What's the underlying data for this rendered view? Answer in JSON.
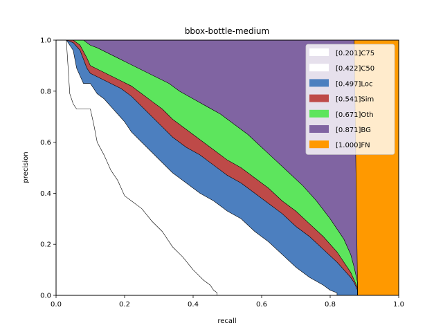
{
  "chart_data": {
    "type": "area",
    "title": "bbox-bottle-medium",
    "xlabel": "recall",
    "ylabel": "precision",
    "xlim": [
      0.0,
      1.0
    ],
    "ylim": [
      0.0,
      1.0
    ],
    "xticks": [
      "0.0",
      "0.2",
      "0.4",
      "0.6",
      "0.8",
      "1.0"
    ],
    "yticks": [
      "0.0",
      "0.2",
      "0.4",
      "0.6",
      "0.8",
      "1.0"
    ],
    "grid": false,
    "legend_position": "top-right",
    "series": [
      {
        "name": "[0.201]C75",
        "color": "#ffffff",
        "x": [
          0.0,
          0.03,
          0.04,
          0.05,
          0.06,
          0.08,
          0.1,
          0.11,
          0.12,
          0.14,
          0.16,
          0.18,
          0.2,
          0.22,
          0.25,
          0.28,
          0.31,
          0.34,
          0.37,
          0.4,
          0.43,
          0.45,
          0.46,
          0.47,
          0.47,
          1.0
        ],
        "y": [
          1.0,
          1.0,
          0.79,
          0.75,
          0.73,
          0.73,
          0.73,
          0.67,
          0.6,
          0.55,
          0.49,
          0.45,
          0.39,
          0.37,
          0.34,
          0.29,
          0.25,
          0.19,
          0.15,
          0.1,
          0.06,
          0.04,
          0.02,
          0.01,
          0.0,
          0.0
        ]
      },
      {
        "name": "[0.422]C50",
        "color": "#ffffff",
        "x": [
          0.0,
          0.03,
          0.05,
          0.06,
          0.08,
          0.09,
          0.1,
          0.12,
          0.14,
          0.16,
          0.18,
          0.2,
          0.22,
          0.25,
          0.28,
          0.31,
          0.34,
          0.38,
          0.42,
          0.46,
          0.5,
          0.54,
          0.58,
          0.62,
          0.66,
          0.7,
          0.74,
          0.78,
          0.8,
          0.82,
          0.82,
          1.0
        ],
        "y": [
          1.0,
          1.0,
          0.96,
          0.89,
          0.83,
          0.83,
          0.83,
          0.79,
          0.77,
          0.74,
          0.71,
          0.68,
          0.64,
          0.6,
          0.56,
          0.52,
          0.48,
          0.44,
          0.4,
          0.37,
          0.33,
          0.3,
          0.25,
          0.21,
          0.16,
          0.11,
          0.07,
          0.04,
          0.02,
          0.01,
          0.0,
          0.0
        ]
      },
      {
        "name": "[0.497]Loc",
        "color": "#4c7fbf",
        "x": [
          0.0,
          0.03,
          0.05,
          0.07,
          0.09,
          0.1,
          0.13,
          0.16,
          0.19,
          0.22,
          0.25,
          0.28,
          0.31,
          0.34,
          0.38,
          0.42,
          0.46,
          0.5,
          0.54,
          0.58,
          0.62,
          0.66,
          0.7,
          0.74,
          0.78,
          0.82,
          0.84,
          0.86,
          0.87,
          0.88,
          0.88,
          1.0
        ],
        "y": [
          1.0,
          1.0,
          0.99,
          0.96,
          0.89,
          0.87,
          0.85,
          0.83,
          0.81,
          0.78,
          0.74,
          0.7,
          0.66,
          0.62,
          0.58,
          0.55,
          0.51,
          0.47,
          0.44,
          0.4,
          0.36,
          0.32,
          0.27,
          0.23,
          0.18,
          0.13,
          0.1,
          0.07,
          0.05,
          0.02,
          0.0,
          0.0
        ]
      },
      {
        "name": "[0.541]Sim",
        "color": "#be4a48",
        "x": [
          0.0,
          0.03,
          0.05,
          0.07,
          0.09,
          0.1,
          0.13,
          0.16,
          0.19,
          0.22,
          0.25,
          0.28,
          0.31,
          0.34,
          0.38,
          0.42,
          0.46,
          0.5,
          0.54,
          0.58,
          0.62,
          0.66,
          0.7,
          0.74,
          0.78,
          0.82,
          0.84,
          0.86,
          0.87,
          0.88,
          0.88,
          1.0
        ],
        "y": [
          1.0,
          1.0,
          1.0,
          0.98,
          0.93,
          0.9,
          0.88,
          0.86,
          0.84,
          0.82,
          0.79,
          0.76,
          0.73,
          0.69,
          0.65,
          0.61,
          0.57,
          0.53,
          0.5,
          0.46,
          0.42,
          0.37,
          0.33,
          0.28,
          0.23,
          0.17,
          0.13,
          0.09,
          0.06,
          0.03,
          0.0,
          0.0
        ]
      },
      {
        "name": "[0.671]Oth",
        "color": "#5de55d",
        "x": [
          0.0,
          0.03,
          0.06,
          0.08,
          0.1,
          0.12,
          0.15,
          0.18,
          0.21,
          0.24,
          0.27,
          0.3,
          0.33,
          0.36,
          0.4,
          0.44,
          0.48,
          0.52,
          0.56,
          0.6,
          0.64,
          0.68,
          0.72,
          0.76,
          0.8,
          0.84,
          0.86,
          0.87,
          0.88,
          0.88,
          1.0
        ],
        "y": [
          1.0,
          1.0,
          1.0,
          1.0,
          0.98,
          0.97,
          0.95,
          0.93,
          0.91,
          0.89,
          0.87,
          0.85,
          0.83,
          0.8,
          0.77,
          0.74,
          0.71,
          0.67,
          0.63,
          0.58,
          0.53,
          0.48,
          0.43,
          0.37,
          0.3,
          0.22,
          0.16,
          0.11,
          0.05,
          0.0,
          0.0
        ]
      },
      {
        "name": "[0.871]BG",
        "color": "#8064a2",
        "x": [
          0.0,
          0.87,
          0.88,
          0.88,
          1.0
        ],
        "y": [
          1.0,
          1.0,
          0.02,
          0.0,
          0.0
        ]
      },
      {
        "name": "[1.000]FN",
        "color": "#ff9900",
        "x": [
          0.0,
          1.0,
          1.0
        ],
        "y": [
          1.0,
          1.0,
          0.0
        ]
      }
    ]
  }
}
